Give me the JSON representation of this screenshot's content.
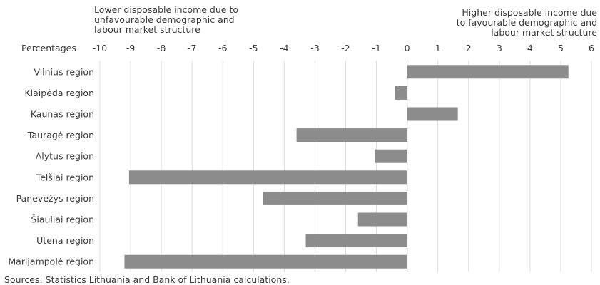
{
  "chart_data": {
    "type": "bar",
    "orientation": "horizontal",
    "xlabel": "Percentages",
    "annotations": {
      "left": "Lower disposable income due to\nunfavourable demographic and\nlabour market structure",
      "right": "Higher disposable income due\nto favourable demographic and\nlabour market structure"
    },
    "categories": [
      "Vilnius region",
      "Klaipėda region",
      "Kaunas region",
      "Tauragė region",
      "Alytus region",
      "Telšiai region",
      "Panevėžys region",
      "Šiauliai region",
      "Utena region",
      "Marijampolė region"
    ],
    "values": [
      5.25,
      -0.4,
      1.65,
      -3.6,
      -1.05,
      -9.05,
      -4.7,
      -1.6,
      -3.3,
      -9.2
    ],
    "xlim": [
      -10,
      6
    ],
    "xticks": [
      "-10",
      "-9",
      "-8",
      "-7",
      "-6",
      "-5",
      "-4",
      "-3",
      "-2",
      "-1",
      "0",
      "1",
      "2",
      "3",
      "4",
      "5",
      "6"
    ],
    "grid": true,
    "bar_color": "#8c8c8c"
  },
  "source": "Sources: Statistics Lithuania and Bank of Lithuania calculations."
}
